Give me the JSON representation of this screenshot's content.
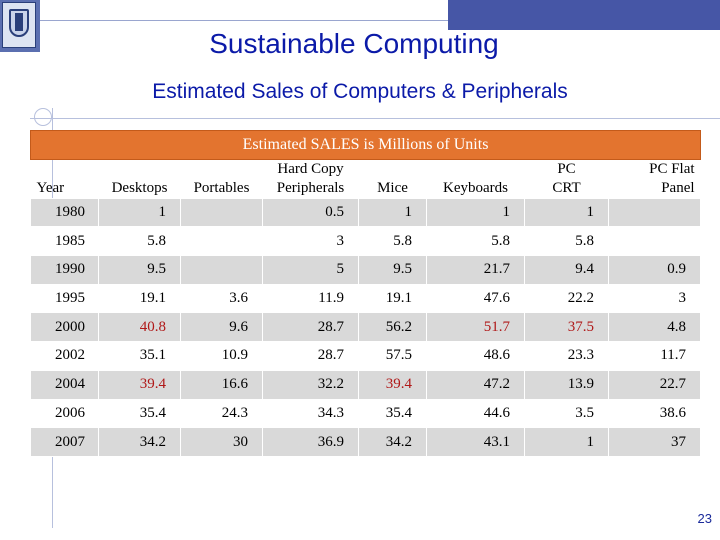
{
  "slide": {
    "title": "Sustainable Computing",
    "subtitle": "Estimated Sales of Computers & Peripherals",
    "page_number": "23"
  },
  "table": {
    "caption": "Estimated SALES is Millions of Units",
    "columns": [
      "Year",
      "Desktops",
      "Portables",
      "Hard Copy\nPeripherals",
      "Mice",
      "Keyboards",
      "PC\nCRT",
      "PC Flat\nPanel"
    ],
    "rows": [
      [
        "1980",
        "1",
        "",
        "0.5",
        "1",
        "1",
        "1",
        ""
      ],
      [
        "1985",
        "5.8",
        "",
        "3",
        "5.8",
        "5.8",
        "5.8",
        ""
      ],
      [
        "1990",
        "9.5",
        "",
        "5",
        "9.5",
        "21.7",
        "9.4",
        "0.9"
      ],
      [
        "1995",
        "19.1",
        "3.6",
        "11.9",
        "19.1",
        "47.6",
        "22.2",
        "3"
      ],
      [
        "2000",
        "40.8",
        "9.6",
        "28.7",
        "56.2",
        "51.7",
        "37.5",
        "4.8"
      ],
      [
        "2002",
        "35.1",
        "10.9",
        "28.7",
        "57.5",
        "48.6",
        "23.3",
        "11.7"
      ],
      [
        "2004",
        "39.4",
        "16.6",
        "32.2",
        "39.4",
        "47.2",
        "13.9",
        "22.7"
      ],
      [
        "2006",
        "35.4",
        "24.3",
        "34.3",
        "35.4",
        "44.6",
        "3.5",
        "38.6"
      ],
      [
        "2007",
        "34.2",
        "30",
        "36.9",
        "34.2",
        "43.1",
        "1",
        "37"
      ]
    ],
    "highlight_color": "#b01818",
    "header_band_color": "#e3742f",
    "shade_color": "#d9d9d9"
  },
  "theme": {
    "title_color": "#0b1aa8",
    "accent_blue": "#4656a6"
  }
}
